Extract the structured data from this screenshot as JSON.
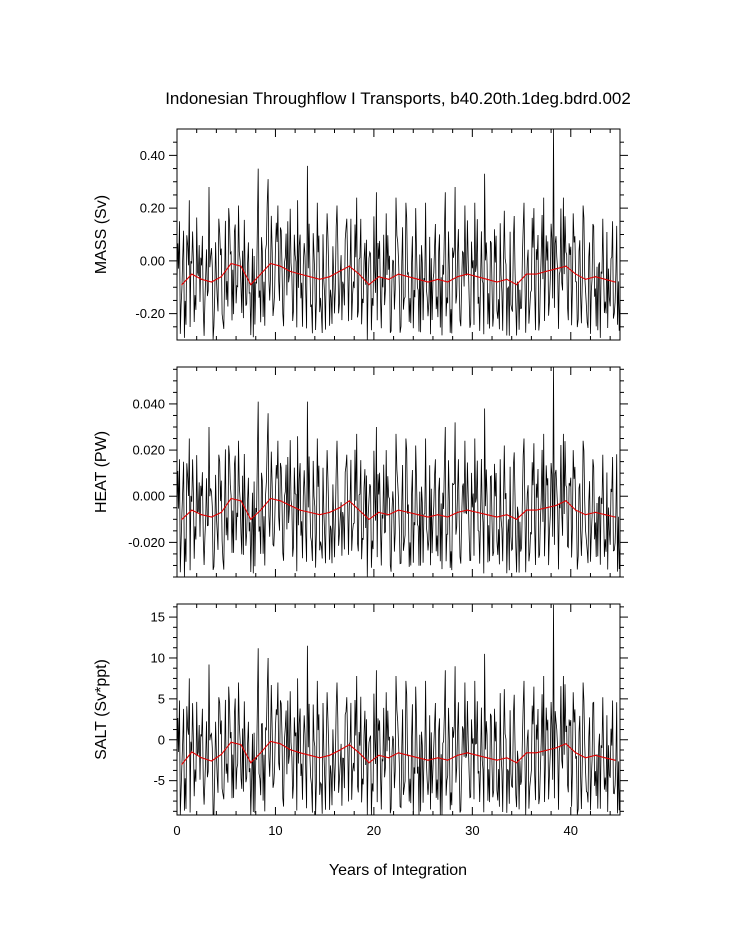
{
  "figure": {
    "title": "Indonesian Throughflow I Transports, b40.20th.1deg.bdrd.002",
    "xlabel": "Years of Integration",
    "line_colors": {
      "raw": "#000000",
      "annual_mean": "#e00000"
    }
  },
  "chart_data": [
    {
      "type": "line",
      "ylabel": "MASS (Sv)",
      "xlim": [
        0,
        45
      ],
      "ylim": [
        -0.3,
        0.5
      ],
      "x_ticks": [
        0,
        10,
        20,
        30,
        40
      ],
      "x_tick_labels": [
        "",
        "",
        "",
        "",
        ""
      ],
      "y_ticks": [
        -0.2,
        0.0,
        0.2,
        0.4
      ],
      "y_tick_labels": [
        "-0.20",
        "0.00",
        "0.20",
        "0.40"
      ],
      "raw_amplitude": 0.18,
      "spike_peaks": [
        0.15,
        0.23,
        0.06,
        0.28,
        0.16,
        0.2,
        0.21,
        0.07,
        0.35,
        0.31,
        0.21,
        0.15,
        0.23,
        0.36,
        0.22,
        0.18,
        0.21,
        0.16,
        0.24,
        0.08,
        0.26,
        0.18,
        0.24,
        0.22,
        0.2,
        0.22,
        0.14,
        0.26,
        0.28,
        0.21,
        0.22,
        0.33,
        0.12,
        0.19,
        0.17,
        0.22,
        0.2,
        0.24,
        0.5,
        0.24,
        0.18,
        0.21,
        0.14,
        0.16,
        0.15
      ],
      "series": [
        {
          "x": [
            0.5,
            1.5,
            2.5,
            3.5,
            4.5,
            5.5,
            6.5,
            7.5,
            8.5,
            9.5,
            10.5,
            11.5,
            12.5,
            13.5,
            14.5,
            15.5,
            16.5,
            17.5,
            18.5,
            19.5,
            20.5,
            21.5,
            22.5,
            23.5,
            24.5,
            25.5,
            26.5,
            27.5,
            28.5,
            29.5,
            30.5,
            31.5,
            32.5,
            33.5,
            34.5,
            35.5,
            36.5,
            37.5,
            38.5,
            39.5,
            40.5,
            41.5,
            42.5,
            43.5,
            44.5
          ],
          "values": [
            -0.09,
            -0.05,
            -0.07,
            -0.08,
            -0.06,
            -0.01,
            -0.02,
            -0.09,
            -0.05,
            -0.01,
            -0.02,
            -0.04,
            -0.05,
            -0.06,
            -0.07,
            -0.06,
            -0.04,
            -0.02,
            -0.05,
            -0.09,
            -0.06,
            -0.07,
            -0.05,
            -0.06,
            -0.07,
            -0.08,
            -0.07,
            -0.08,
            -0.06,
            -0.05,
            -0.06,
            -0.07,
            -0.08,
            -0.07,
            -0.09,
            -0.05,
            -0.05,
            -0.04,
            -0.03,
            -0.02,
            -0.05,
            -0.07,
            -0.06,
            -0.07,
            -0.08
          ]
        }
      ]
    },
    {
      "type": "line",
      "ylabel": "HEAT (PW)",
      "xlim": [
        0,
        45
      ],
      "ylim": [
        -0.035,
        0.056
      ],
      "x_ticks": [
        0,
        10,
        20,
        30,
        40
      ],
      "x_tick_labels": [
        "",
        "",
        "",
        "",
        ""
      ],
      "y_ticks": [
        -0.02,
        0.0,
        0.02,
        0.04
      ],
      "y_tick_labels": [
        "-0.020",
        "0.000",
        "0.020",
        "0.040"
      ],
      "raw_amplitude": 0.021,
      "spike_peaks": [
        0.016,
        0.025,
        0.006,
        0.03,
        0.018,
        0.022,
        0.024,
        0.008,
        0.041,
        0.036,
        0.024,
        0.017,
        0.026,
        0.041,
        0.025,
        0.02,
        0.024,
        0.018,
        0.027,
        0.009,
        0.03,
        0.02,
        0.027,
        0.025,
        0.022,
        0.025,
        0.016,
        0.03,
        0.032,
        0.024,
        0.025,
        0.038,
        0.014,
        0.022,
        0.019,
        0.025,
        0.023,
        0.027,
        0.056,
        0.027,
        0.02,
        0.024,
        0.016,
        0.018,
        0.017
      ],
      "series": [
        {
          "x": [
            0.5,
            1.5,
            2.5,
            3.5,
            4.5,
            5.5,
            6.5,
            7.5,
            8.5,
            9.5,
            10.5,
            11.5,
            12.5,
            13.5,
            14.5,
            15.5,
            16.5,
            17.5,
            18.5,
            19.5,
            20.5,
            21.5,
            22.5,
            23.5,
            24.5,
            25.5,
            26.5,
            27.5,
            28.5,
            29.5,
            30.5,
            31.5,
            32.5,
            33.5,
            34.5,
            35.5,
            36.5,
            37.5,
            38.5,
            39.5,
            40.5,
            41.5,
            42.5,
            43.5,
            44.5
          ],
          "values": [
            -0.01,
            -0.006,
            -0.008,
            -0.009,
            -0.007,
            -0.001,
            -0.002,
            -0.01,
            -0.006,
            -0.001,
            -0.002,
            -0.004,
            -0.006,
            -0.007,
            -0.008,
            -0.007,
            -0.005,
            -0.002,
            -0.006,
            -0.01,
            -0.007,
            -0.008,
            -0.006,
            -0.007,
            -0.008,
            -0.009,
            -0.008,
            -0.009,
            -0.007,
            -0.006,
            -0.007,
            -0.008,
            -0.009,
            -0.008,
            -0.01,
            -0.006,
            -0.006,
            -0.005,
            -0.004,
            -0.002,
            -0.006,
            -0.008,
            -0.007,
            -0.008,
            -0.009
          ]
        }
      ]
    },
    {
      "type": "line",
      "ylabel": "SALT (Sv*ppt)",
      "xlim": [
        0,
        45
      ],
      "ylim": [
        -9.2,
        16.6
      ],
      "x_ticks": [
        0,
        10,
        20,
        30,
        40
      ],
      "x_tick_labels": [
        "0",
        "10",
        "20",
        "30",
        "40"
      ],
      "y_ticks": [
        -5,
        0,
        5,
        10,
        15
      ],
      "y_tick_labels": [
        "-5",
        "0",
        "5",
        "10",
        "15"
      ],
      "raw_amplitude": 6.0,
      "spike_peaks": [
        4.8,
        7.5,
        1.8,
        9.2,
        5.2,
        6.5,
        7.0,
        2.2,
        11.2,
        10.0,
        7.0,
        4.8,
        7.5,
        11.5,
        7.2,
        5.8,
        7.0,
        5.2,
        7.8,
        2.5,
        8.5,
        5.8,
        7.8,
        7.2,
        6.5,
        7.2,
        4.5,
        8.5,
        9.0,
        7.0,
        7.2,
        10.5,
        3.8,
        6.2,
        5.5,
        7.2,
        6.5,
        7.8,
        16.5,
        7.8,
        5.8,
        7.0,
        4.5,
        5.2,
        4.8
      ],
      "series": [
        {
          "x": [
            0.5,
            1.5,
            2.5,
            3.5,
            4.5,
            5.5,
            6.5,
            7.5,
            8.5,
            9.5,
            10.5,
            11.5,
            12.5,
            13.5,
            14.5,
            15.5,
            16.5,
            17.5,
            18.5,
            19.5,
            20.5,
            21.5,
            22.5,
            23.5,
            24.5,
            25.5,
            26.5,
            27.5,
            28.5,
            29.5,
            30.5,
            31.5,
            32.5,
            33.5,
            34.5,
            35.5,
            36.5,
            37.5,
            38.5,
            39.5,
            40.5,
            41.5,
            42.5,
            43.5,
            44.5
          ],
          "values": [
            -3.0,
            -1.5,
            -2.2,
            -2.6,
            -1.8,
            -0.3,
            -0.6,
            -2.8,
            -1.6,
            -0.2,
            -0.5,
            -1.2,
            -1.6,
            -1.9,
            -2.2,
            -1.9,
            -1.3,
            -0.6,
            -1.6,
            -2.8,
            -1.9,
            -2.2,
            -1.6,
            -1.9,
            -2.2,
            -2.5,
            -2.2,
            -2.5,
            -1.9,
            -1.6,
            -1.9,
            -2.2,
            -2.5,
            -2.2,
            -2.8,
            -1.6,
            -1.6,
            -1.3,
            -1.0,
            -0.5,
            -1.6,
            -2.2,
            -1.9,
            -2.2,
            -2.5
          ]
        }
      ]
    }
  ]
}
